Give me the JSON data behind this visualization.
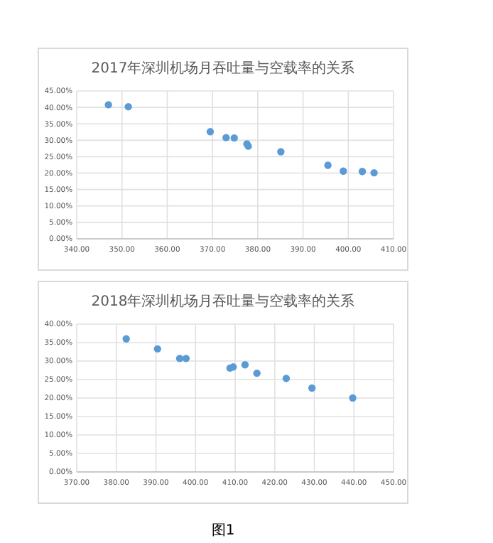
{
  "chart_data": [
    {
      "type": "scatter",
      "title": "2017年深圳机场月吞吐量与空载率的关系",
      "grid": true,
      "marker": "circle",
      "series": [
        {
          "color": "#5b9bd5",
          "x": [
            347.0,
            351.4,
            369.5,
            373.0,
            374.8,
            377.6,
            377.9,
            385.1,
            395.5,
            398.9,
            403.1,
            405.7
          ],
          "values": [
            40.8,
            40.2,
            32.6,
            30.8,
            30.7,
            28.9,
            28.2,
            26.5,
            22.4,
            20.6,
            20.5,
            20.1
          ]
        }
      ],
      "xlim": [
        340,
        410
      ],
      "xticks": [
        {
          "value": 340,
          "label": "340.00"
        },
        {
          "value": 350,
          "label": "350.00"
        },
        {
          "value": 360,
          "label": "360.00"
        },
        {
          "value": 370,
          "label": "370.00"
        },
        {
          "value": 380,
          "label": "380.00"
        },
        {
          "value": 390,
          "label": "390.00"
        },
        {
          "value": 400,
          "label": "400.00"
        },
        {
          "value": 410,
          "label": "410.00"
        }
      ],
      "ylim": [
        0,
        45
      ],
      "yticks": [
        {
          "value": 0,
          "label": "0.00%"
        },
        {
          "value": 5,
          "label": "5.00%"
        },
        {
          "value": 10,
          "label": "10.00%"
        },
        {
          "value": 15,
          "label": "15.00%"
        },
        {
          "value": 20,
          "label": "20.00%"
        },
        {
          "value": 25,
          "label": "25.00%"
        },
        {
          "value": 30,
          "label": "30.00%"
        },
        {
          "value": 35,
          "label": "35.00%"
        },
        {
          "value": 40,
          "label": "40.00%"
        },
        {
          "value": 45,
          "label": "45.00%"
        }
      ]
    },
    {
      "type": "scatter",
      "title": "2018年深圳机场月吞吐量与空载率的关系",
      "grid": true,
      "marker": "circle",
      "annotations": [
        "图1"
      ],
      "series": [
        {
          "color": "#5b9bd5",
          "x": [
            382.5,
            390.4,
            396.0,
            397.6,
            408.7,
            409.5,
            412.5,
            415.5,
            422.9,
            429.4,
            439.7
          ],
          "values": [
            36.0,
            33.3,
            30.7,
            30.7,
            28.1,
            28.4,
            29.0,
            26.7,
            25.3,
            22.7,
            20.0
          ]
        }
      ],
      "xlim": [
        370,
        450
      ],
      "xticks": [
        {
          "value": 370,
          "label": "370.00"
        },
        {
          "value": 380,
          "label": "380.00"
        },
        {
          "value": 390,
          "label": "390.00"
        },
        {
          "value": 400,
          "label": "400.00"
        },
        {
          "value": 410,
          "label": "410.00"
        },
        {
          "value": 420,
          "label": "420.00"
        },
        {
          "value": 430,
          "label": "430.00"
        },
        {
          "value": 440,
          "label": "440.00"
        },
        {
          "value": 450,
          "label": "450.00"
        }
      ],
      "ylim": [
        0,
        40
      ],
      "yticks": [
        {
          "value": 0,
          "label": "0.00%"
        },
        {
          "value": 5,
          "label": "5.00%"
        },
        {
          "value": 10,
          "label": "10.00%"
        },
        {
          "value": 15,
          "label": "15.00%"
        },
        {
          "value": 20,
          "label": "20.00%"
        },
        {
          "value": 25,
          "label": "25.00%"
        },
        {
          "value": 30,
          "label": "30.00%"
        },
        {
          "value": 35,
          "label": "35.00%"
        },
        {
          "value": 40,
          "label": "40.00%"
        }
      ]
    }
  ]
}
